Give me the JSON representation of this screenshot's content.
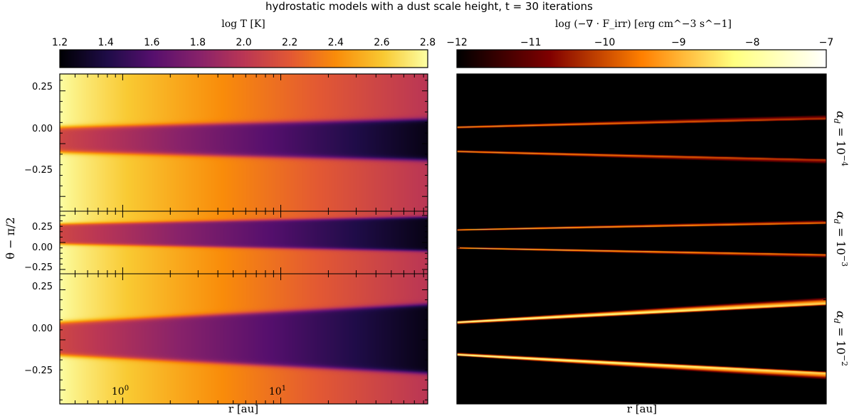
{
  "figure": {
    "title": "hydrostatic models with a dust scale height, t = 30 iterations"
  },
  "colorbars": {
    "temperature": {
      "label": "log T [K]",
      "ticks": [
        "1.2",
        "1.4",
        "1.6",
        "1.8",
        "2.0",
        "2.2",
        "2.4",
        "2.6",
        "2.8"
      ],
      "range": [
        1.2,
        2.8
      ],
      "colormap": "inferno"
    },
    "heating": {
      "label": "log (−∇ · F_irr) [erg cm^−3 s^−1]",
      "ticks": [
        "−12",
        "−11",
        "−10",
        "−9",
        "−8",
        "−7"
      ],
      "range": [
        -12,
        -7
      ],
      "colormap": "afmhot"
    }
  },
  "axes": {
    "ylabel": "θ − π/2",
    "xlabel": "r [au]",
    "yticks": [
      "0.25",
      "0.00",
      "−0.25"
    ],
    "xtick_values": [
      1,
      10
    ],
    "xticks": [
      {
        "base": "10",
        "exp": "0"
      },
      {
        "base": "10",
        "exp": "1"
      }
    ],
    "x_scale": "log"
  },
  "rows": [
    {
      "label_base": "α",
      "label_sub": "d",
      "label_rhs": " = 10",
      "label_exp": "−4"
    },
    {
      "label_base": "α",
      "label_sub": "d",
      "label_rhs": " = 10",
      "label_exp": "−3"
    },
    {
      "label_base": "α",
      "label_sub": "d",
      "label_rhs": " = 10",
      "label_exp": "−2"
    }
  ],
  "chart_data": {
    "type": "heatmap",
    "title": "hydrostatic models with a dust scale height, t = 30 iterations",
    "xlabel": "r [au]",
    "ylabel": "θ − π/2",
    "xlim": [
      0.4,
      85
    ],
    "ylim": [
      -0.32,
      0.32
    ],
    "x_scale": "log",
    "panels": [
      {
        "quantity": "log T [K]",
        "alpha_d": "10^-4",
        "surface_theta_at_xlim": [
          0.06,
          0.1
        ],
        "midplane_logT": [
          2.1,
          1.25
        ],
        "upper_logT": [
          2.8,
          2.0
        ]
      },
      {
        "quantity": "log T [K]",
        "alpha_d": "10^-3",
        "surface_theta_at_xlim": [
          0.07,
          0.12
        ],
        "midplane_logT": [
          2.1,
          1.25
        ],
        "upper_logT": [
          2.8,
          2.0
        ]
      },
      {
        "quantity": "log T [K]",
        "alpha_d": "10^-2",
        "surface_theta_at_xlim": [
          0.08,
          0.17
        ],
        "midplane_logT": [
          2.1,
          1.25
        ],
        "upper_logT": [
          2.8,
          2.0
        ]
      },
      {
        "quantity": "log(−∇·F_irr)",
        "alpha_d": "10^-4",
        "surface_theta_at_xlim": [
          0.06,
          0.1
        ],
        "peak_log_heating": [
          -9.0,
          -10.2
        ]
      },
      {
        "quantity": "log(−∇·F_irr)",
        "alpha_d": "10^-3",
        "surface_theta_at_xlim": [
          0.07,
          0.12
        ],
        "peak_log_heating": [
          -8.5,
          -9.6
        ]
      },
      {
        "quantity": "log(−∇·F_irr)",
        "alpha_d": "10^-2",
        "surface_theta_at_xlim": [
          0.08,
          0.17
        ],
        "peak_log_heating": [
          -7.6,
          -8.6
        ]
      }
    ]
  }
}
